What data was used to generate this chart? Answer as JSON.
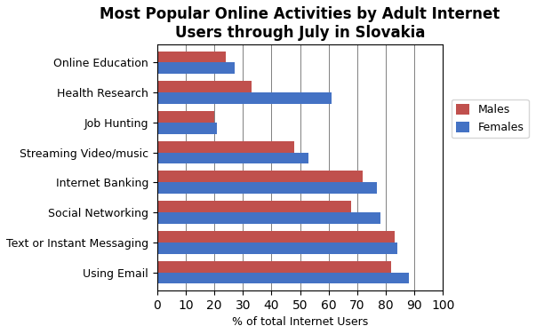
{
  "title": "Most Popular Online Activities by Adult Internet\nUsers through July in Slovakia",
  "categories": [
    "Using Email",
    "Text or Instant Messaging",
    "Social Networking",
    "Internet Banking",
    "Streaming Video/music",
    "Job Hunting",
    "Health Research",
    "Online Education"
  ],
  "females": [
    88,
    84,
    78,
    77,
    53,
    21,
    61,
    27
  ],
  "males": [
    82,
    83,
    68,
    72,
    48,
    20,
    33,
    24
  ],
  "female_color": "#4472C4",
  "male_color": "#C0504D",
  "xlabel": "% of total Internet Users",
  "xlim": [
    0,
    100
  ],
  "xticks": [
    0,
    10,
    20,
    30,
    40,
    50,
    60,
    70,
    80,
    90,
    100
  ],
  "legend_labels": [
    "Females",
    "Males"
  ],
  "title_fontsize": 12,
  "label_fontsize": 9,
  "bar_height": 0.38
}
